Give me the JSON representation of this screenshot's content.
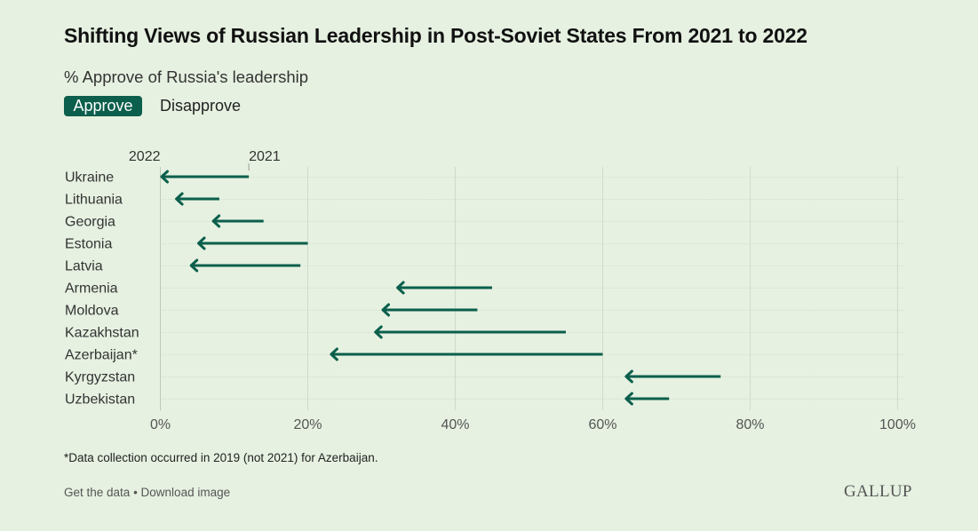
{
  "chart_data": {
    "type": "arrow-dumbbell",
    "title": "Shifting Views of Russian Leadership in Post-Soviet States From 2021 to 2022",
    "subtitle": "% Approve of Russia's leadership",
    "toggle": {
      "active": "Approve",
      "inactive": "Disapprove"
    },
    "legend": {
      "start_label": "2021",
      "end_label": "2022"
    },
    "xlim": [
      0,
      100
    ],
    "x_ticks": [
      0,
      20,
      40,
      60,
      80,
      100
    ],
    "x_tick_labels": [
      "0%",
      "20%",
      "40%",
      "60%",
      "80%",
      "100%"
    ],
    "categories": [
      "Ukraine",
      "Lithuania",
      "Georgia",
      "Estonia",
      "Latvia",
      "Armenia",
      "Moldova",
      "Kazakhstan",
      "Azerbaijan*",
      "Kyrgyzstan",
      "Uzbekistan"
    ],
    "series": [
      {
        "name": "2021",
        "values": [
          12,
          8,
          14,
          20,
          19,
          45,
          43,
          55,
          60,
          76,
          69
        ]
      },
      {
        "name": "2022",
        "values": [
          0,
          2,
          7,
          5,
          4,
          32,
          30,
          29,
          23,
          63,
          63
        ]
      }
    ],
    "colors": {
      "arrow": "#0b5f4c",
      "grid": "#cfdcca",
      "background": "#e6f1e1"
    }
  },
  "footnote": "*Data collection occurred in 2019 (not 2021) for Azerbaijan.",
  "footer": {
    "get_data": "Get the data",
    "separator": " • ",
    "download": "Download image"
  },
  "logo": "GALLUP"
}
